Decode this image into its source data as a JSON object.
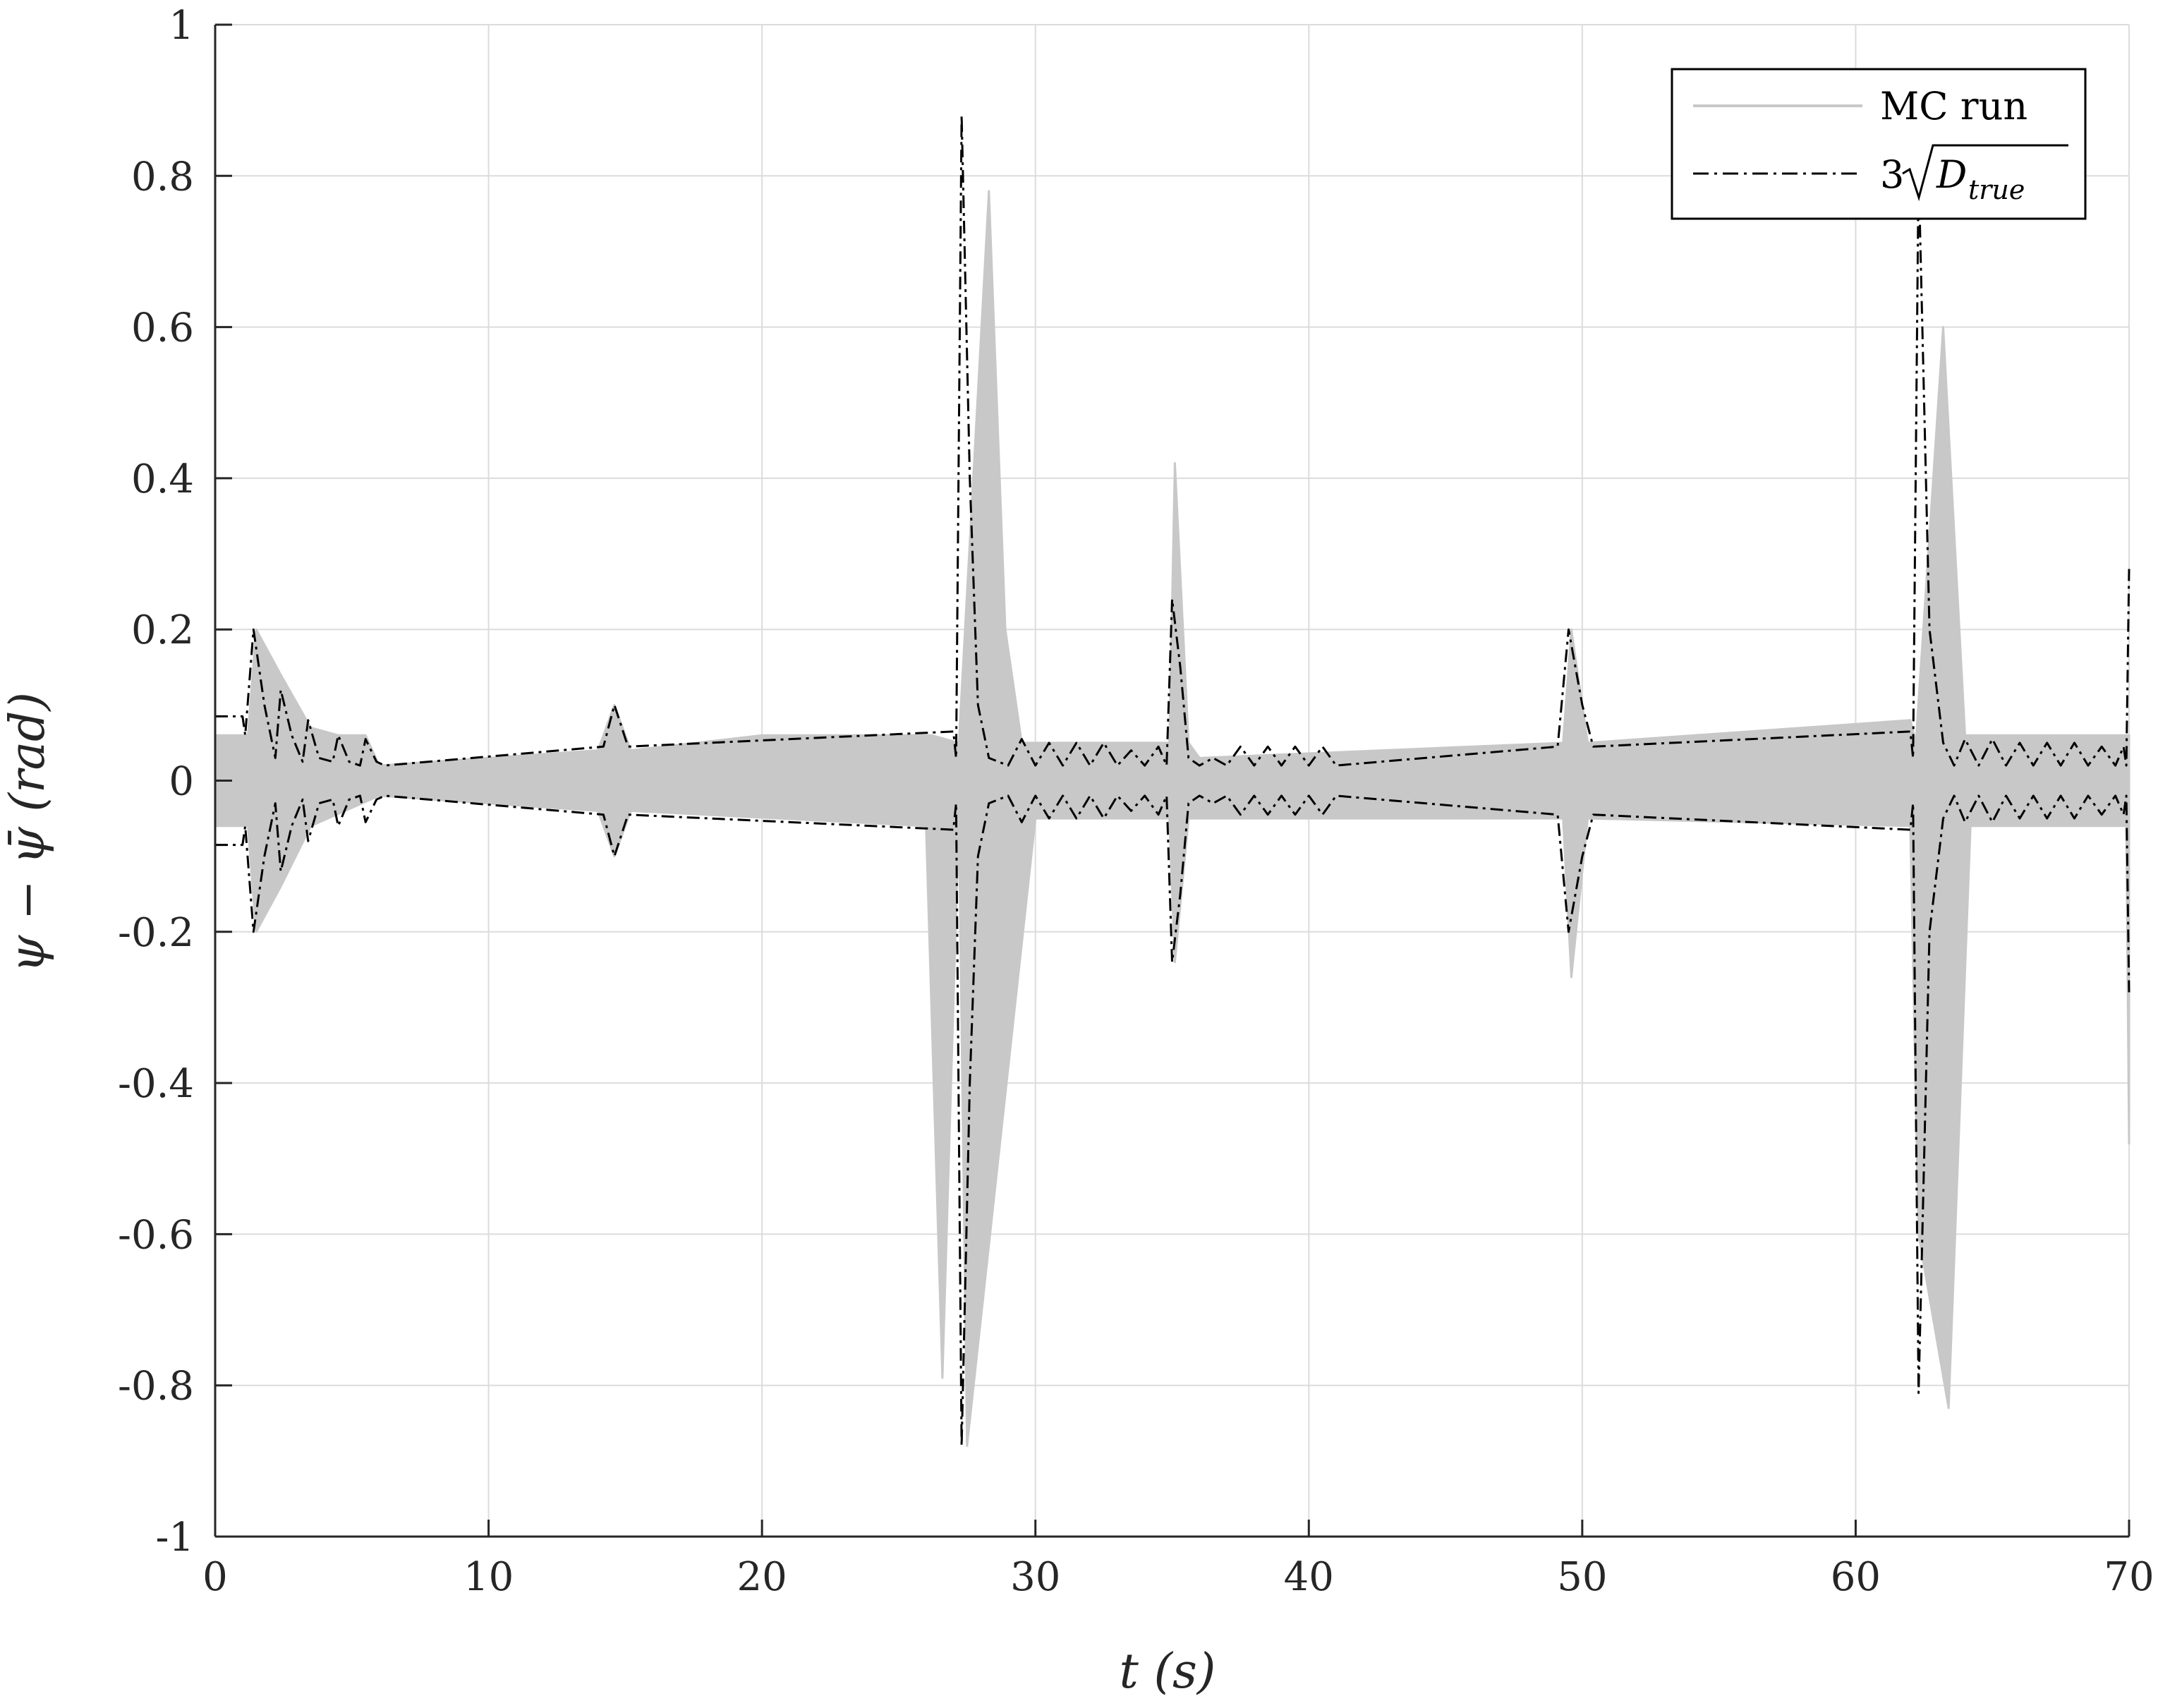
{
  "chart_data": {
    "type": "line",
    "title": "",
    "xlabel": "t (s)",
    "ylabel": "ψ − ψ̄ (rad)",
    "xlim": [
      0,
      70
    ],
    "ylim": [
      -1,
      1
    ],
    "x_ticks": [
      0,
      10,
      20,
      30,
      40,
      50,
      60,
      70
    ],
    "y_ticks": [
      -1,
      -0.8,
      -0.6,
      -0.4,
      -0.2,
      0,
      0.2,
      0.4,
      0.6,
      0.8,
      1
    ],
    "x_tick_labels": [
      "0",
      "10",
      "20",
      "30",
      "40",
      "50",
      "60",
      "70"
    ],
    "y_tick_labels": [
      "-1",
      "-0.8",
      "-0.6",
      "-0.4",
      "-0.2",
      "0",
      "0.2",
      "0.4",
      "0.6",
      "0.8",
      "1"
    ],
    "grid": true,
    "legend": {
      "placement": "top-right",
      "entries": [
        {
          "label": "MC run",
          "color": "#c8c8c8",
          "style": "solid"
        },
        {
          "label_prefix": "3",
          "label_symbol": "D",
          "label_subscript": "true",
          "color": "#000000",
          "style": "dash-dot"
        }
      ]
    },
    "series": [
      {
        "name": "MC run",
        "color": "#c8c8c8",
        "description_of_shape": "dense ensemble of Monte Carlo error trajectories",
        "envelope_upper": {
          "x": [
            0,
            1.2,
            1.5,
            2.4,
            3.5,
            4.5,
            5.5,
            6,
            14,
            14.6,
            15.2,
            20,
            26.2,
            27.2,
            28.3,
            28.9,
            29.5,
            34.9,
            35.1,
            35.6,
            36,
            49.3,
            49.6,
            50.2,
            62,
            62.2,
            63.2,
            64,
            70
          ],
          "y": [
            0.06,
            0.06,
            0.2,
            0.14,
            0.07,
            0.06,
            0.06,
            0.02,
            0.04,
            0.1,
            0.04,
            0.06,
            0.06,
            0.05,
            0.78,
            0.2,
            0.05,
            0.05,
            0.42,
            0.05,
            0.03,
            0.05,
            0.2,
            0.05,
            0.08,
            0.05,
            0.6,
            0.06,
            0.06
          ]
        },
        "envelope_lower": {
          "x": [
            0,
            1.2,
            1.5,
            2.4,
            3.5,
            6,
            14,
            14.6,
            15.2,
            26,
            26.6,
            27.2,
            27.5,
            30,
            34.9,
            35.1,
            35.6,
            49.3,
            49.6,
            50.2,
            62,
            62.3,
            63.4,
            64.2,
            69.9,
            70
          ],
          "y": [
            -0.06,
            -0.06,
            -0.2,
            -0.14,
            -0.06,
            -0.02,
            -0.04,
            -0.1,
            -0.04,
            -0.06,
            -0.79,
            -0.05,
            -0.88,
            -0.05,
            -0.05,
            -0.24,
            -0.05,
            -0.05,
            -0.26,
            -0.05,
            -0.06,
            -0.6,
            -0.83,
            -0.06,
            -0.06,
            -0.48
          ]
        }
      },
      {
        "name": "3√D_true",
        "color": "#000000",
        "description_of_shape": "symmetric ±3-sigma envelope",
        "x": [
          0,
          1.0,
          1.1,
          1.4,
          1.8,
          2.2,
          2.4,
          2.8,
          3.2,
          3.4,
          3.8,
          4.3,
          4.5,
          4.9,
          5.3,
          5.5,
          5.9,
          6.2,
          14.2,
          14.6,
          15.1,
          27.0,
          27.1,
          27.3,
          27.6,
          27.9,
          28.3,
          29.0,
          29.5,
          30.0,
          30.5,
          31.0,
          31.5,
          32.0,
          32.5,
          33.0,
          33.5,
          34.0,
          34.5,
          34.8,
          35.0,
          35.3,
          35.6,
          36.0,
          36.5,
          37.0,
          37.5,
          38.0,
          38.5,
          39.0,
          39.5,
          40.0,
          40.5,
          41.0,
          49.1,
          49.5,
          50.0,
          50.4,
          62.0,
          62.1,
          62.3,
          62.7,
          63.2,
          63.6,
          64.0,
          64.5,
          65.0,
          65.5,
          66.0,
          66.5,
          67.0,
          67.5,
          68.0,
          68.5,
          69.0,
          69.5,
          69.8,
          69.9,
          70
        ],
        "y": [
          0.085,
          0.085,
          0.06,
          0.2,
          0.1,
          0.03,
          0.12,
          0.06,
          0.025,
          0.08,
          0.03,
          0.025,
          0.06,
          0.025,
          0.02,
          0.055,
          0.025,
          0.02,
          0.045,
          0.1,
          0.045,
          0.065,
          0.03,
          0.88,
          0.4,
          0.1,
          0.03,
          0.02,
          0.055,
          0.02,
          0.05,
          0.02,
          0.05,
          0.02,
          0.05,
          0.02,
          0.04,
          0.02,
          0.045,
          0.02,
          0.24,
          0.15,
          0.03,
          0.02,
          0.03,
          0.02,
          0.045,
          0.02,
          0.045,
          0.02,
          0.045,
          0.02,
          0.045,
          0.02,
          0.045,
          0.2,
          0.1,
          0.045,
          0.065,
          0.03,
          0.81,
          0.2,
          0.05,
          0.02,
          0.055,
          0.02,
          0.055,
          0.02,
          0.05,
          0.02,
          0.05,
          0.02,
          0.05,
          0.02,
          0.045,
          0.02,
          0.045,
          0.02,
          0.28
        ]
      }
    ]
  }
}
